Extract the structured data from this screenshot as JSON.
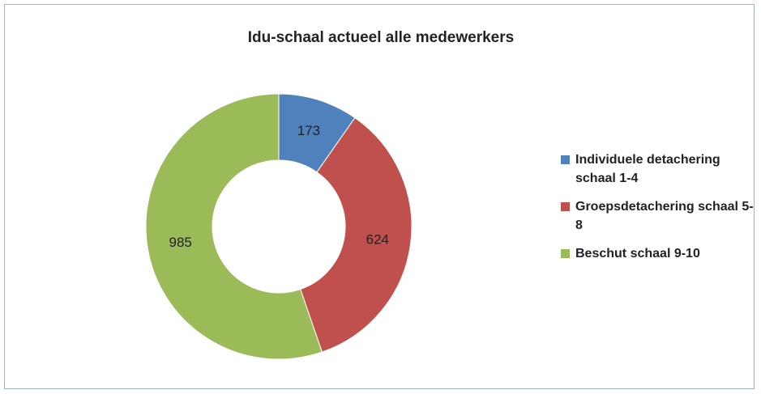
{
  "chart_data": {
    "type": "donut",
    "title": "Idu-schaal actueel alle medewerkers",
    "categories": [
      "Individuele detachering schaal 1-4",
      "Groepsdetachering schaal 5-8",
      "Beschut schaal 9-10"
    ],
    "values": [
      173,
      624,
      985
    ],
    "colors": [
      "#4f81bd",
      "#c0504d",
      "#9bbb59"
    ],
    "legend": "right"
  }
}
